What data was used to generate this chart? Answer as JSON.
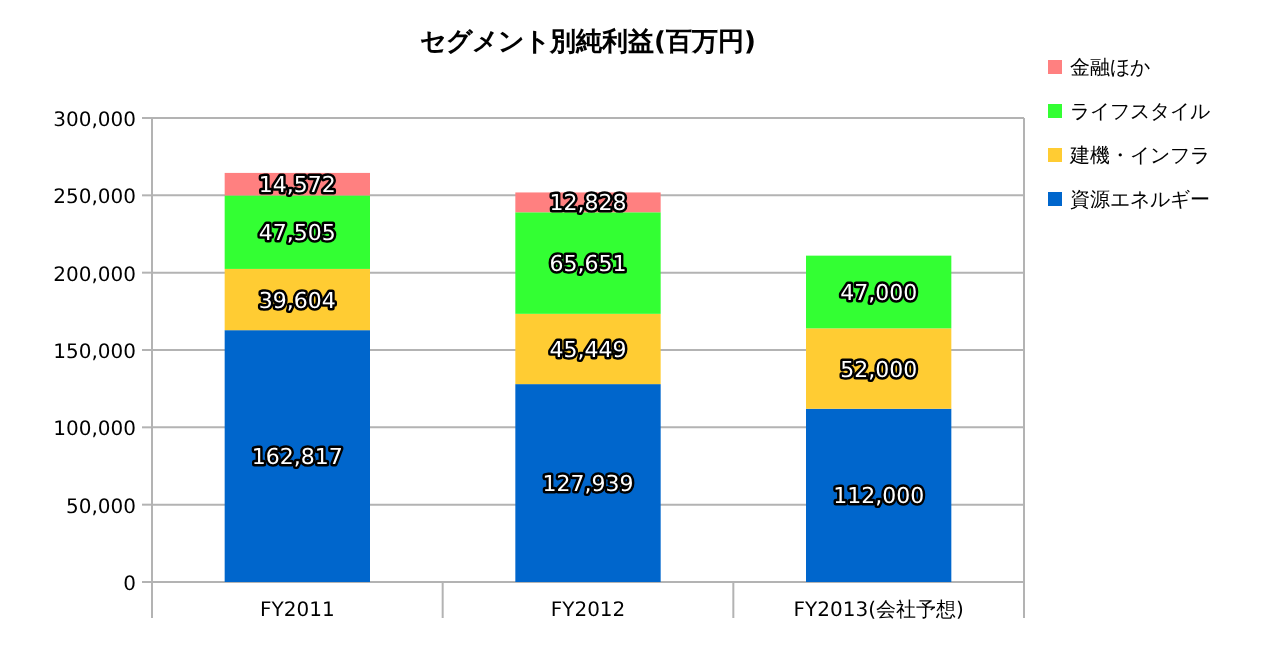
{
  "chart_data": {
    "type": "bar",
    "stacked": true,
    "title": "セグメント別純利益(百万円)",
    "categories": [
      "FY2011",
      "FY2012",
      "FY2013(会社予想)"
    ],
    "series": [
      {
        "name": "資源エネルギー",
        "color": "#0066cc",
        "values": [
          162817,
          127939,
          112000
        ],
        "value_labels": [
          "162,817",
          "127,939",
          "112,000"
        ]
      },
      {
        "name": "建機・インフラ",
        "color": "#ffcc33",
        "values": [
          39604,
          45449,
          52000
        ],
        "value_labels": [
          "39,604",
          "45,449",
          "52,000"
        ]
      },
      {
        "name": "ライフスタイル",
        "color": "#33ff33",
        "values": [
          47505,
          65651,
          47000
        ],
        "value_labels": [
          "47,505",
          "65,651",
          "47,000"
        ]
      },
      {
        "name": "金融ほか",
        "color": "#ff8080",
        "values": [
          14572,
          12828,
          null
        ],
        "value_labels": [
          "14,572",
          "12,828",
          null
        ]
      }
    ],
    "ylim": [
      0,
      300000
    ],
    "yticks": [
      {
        "value": 0,
        "label": "0"
      },
      {
        "value": 50000,
        "label": "50,000"
      },
      {
        "value": 100000,
        "label": "100,000"
      },
      {
        "value": 150000,
        "label": "150,000"
      },
      {
        "value": 200000,
        "label": "200,000"
      },
      {
        "value": 250000,
        "label": "250,000"
      },
      {
        "value": 300000,
        "label": "300,000"
      }
    ],
    "grid": "y",
    "legend": "top right"
  }
}
